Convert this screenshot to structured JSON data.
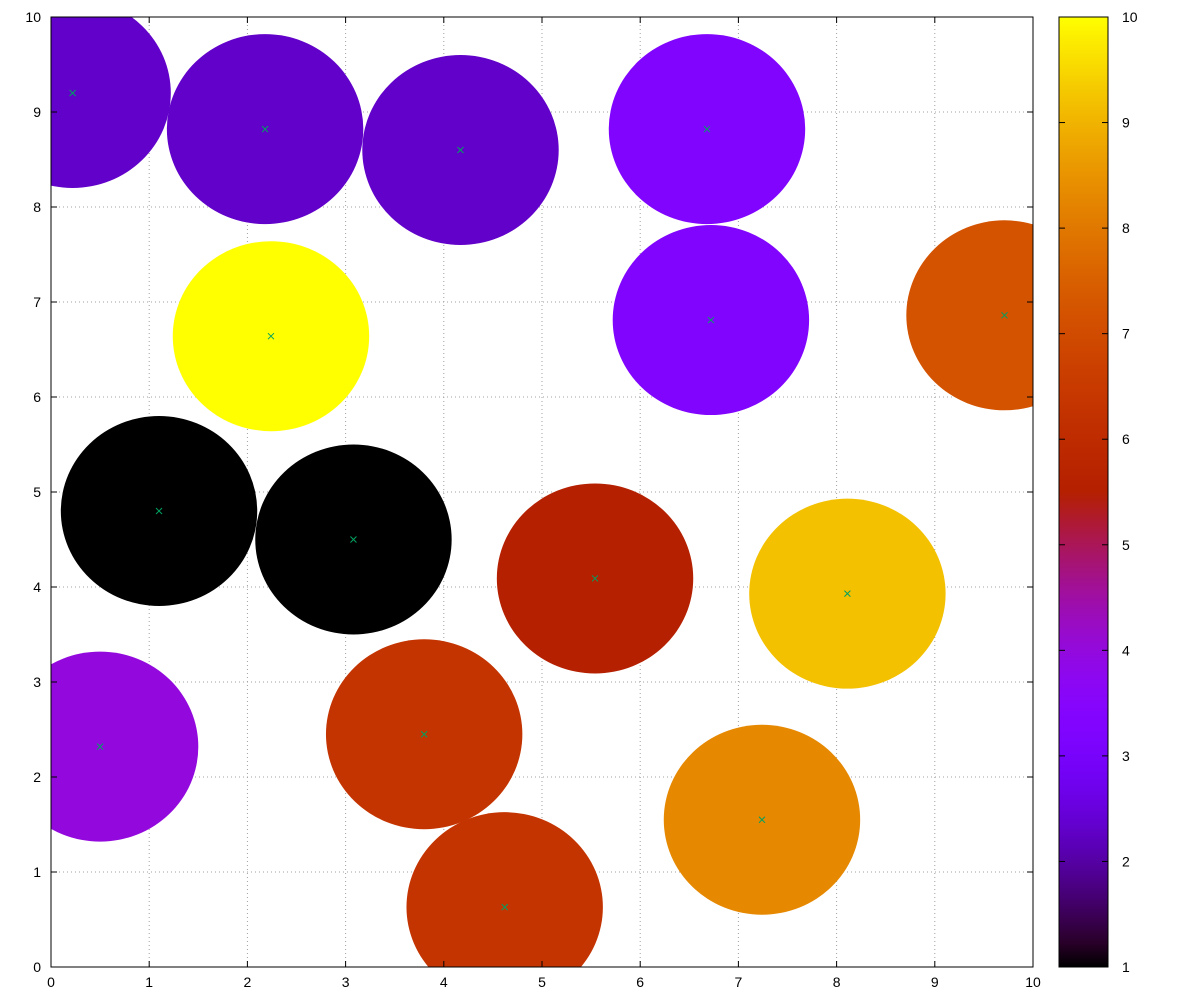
{
  "chart_data": {
    "type": "scatter",
    "title": "",
    "xlabel": "",
    "ylabel": "",
    "xlim": [
      0,
      10
    ],
    "ylim": [
      0,
      10
    ],
    "grid": true,
    "x_ticks": [
      "0",
      "1",
      "2",
      "3",
      "4",
      "5",
      "6",
      "7",
      "8",
      "9",
      "10"
    ],
    "y_ticks": [
      "0",
      "1",
      "2",
      "3",
      "4",
      "5",
      "6",
      "7",
      "8",
      "9",
      "10"
    ],
    "radius": 1.0,
    "marker": "x",
    "marker_color": "#00a060",
    "colorbar": {
      "range": [
        1,
        10
      ],
      "ticks": [
        "1",
        "2",
        "3",
        "4",
        "5",
        "6",
        "7",
        "8",
        "9",
        "10"
      ],
      "palette": "gnuplot (black-blue-purple-red-orange-yellow)"
    },
    "points": [
      {
        "x": 0.22,
        "y": 9.2,
        "value": 2.3
      },
      {
        "x": 2.18,
        "y": 8.82,
        "value": 2.3
      },
      {
        "x": 4.17,
        "y": 8.6,
        "value": 2.3
      },
      {
        "x": 6.68,
        "y": 8.82,
        "value": 3.3
      },
      {
        "x": 2.24,
        "y": 6.64,
        "value": 10.0
      },
      {
        "x": 6.72,
        "y": 6.81,
        "value": 3.3
      },
      {
        "x": 9.71,
        "y": 6.86,
        "value": 7.2
      },
      {
        "x": 1.1,
        "y": 4.8,
        "value": 1.0
      },
      {
        "x": 3.08,
        "y": 4.5,
        "value": 1.0
      },
      {
        "x": 5.54,
        "y": 4.09,
        "value": 5.5
      },
      {
        "x": 8.11,
        "y": 3.93,
        "value": 9.2
      },
      {
        "x": 0.5,
        "y": 2.32,
        "value": 4.0
      },
      {
        "x": 3.8,
        "y": 2.45,
        "value": 6.3
      },
      {
        "x": 7.24,
        "y": 1.55,
        "value": 8.3
      },
      {
        "x": 4.62,
        "y": 0.63,
        "value": 6.3
      }
    ]
  }
}
